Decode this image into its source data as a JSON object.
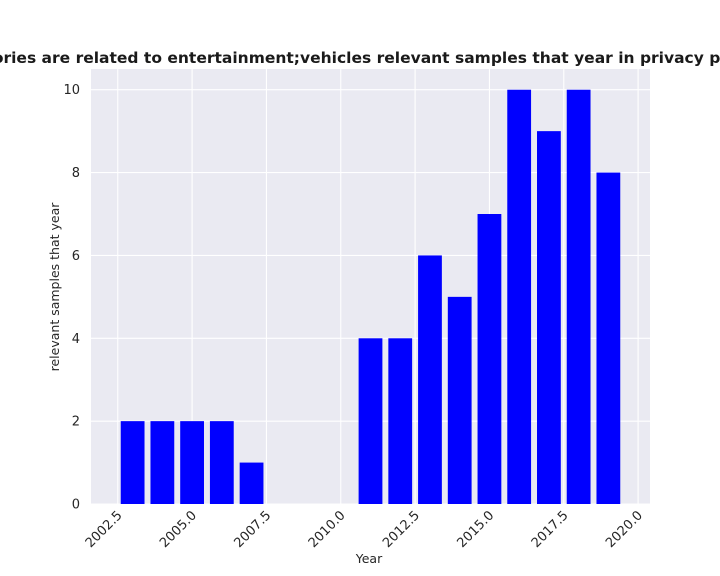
{
  "chart_data": {
    "type": "bar",
    "title": "categories are related to entertainment;vehicles relevant samples that year in privacy policies",
    "xlabel": "Year",
    "ylabel": "relevant samples that year",
    "x": [
      2003,
      2004,
      2005,
      2006,
      2007,
      2008,
      2009,
      2010,
      2011,
      2012,
      2013,
      2014,
      2015,
      2016,
      2017,
      2018,
      2019
    ],
    "values": [
      2,
      2,
      2,
      2,
      1,
      0,
      0,
      0,
      4,
      4,
      6,
      5,
      7,
      10,
      9,
      10,
      8
    ],
    "xlim": [
      2001.6,
      2020.4
    ],
    "ylim": [
      0,
      10.5
    ],
    "xticks": [
      "2002.5",
      "2005.0",
      "2007.5",
      "2010.0",
      "2012.5",
      "2015.0",
      "2017.5",
      "2020.0"
    ],
    "yticks": [
      "0",
      "2",
      "4",
      "6",
      "8",
      "10"
    ],
    "grid": true,
    "colors": {
      "bar": "#0000ff",
      "plot_background": "#eaeaf2",
      "grid": "#ffffff"
    }
  }
}
